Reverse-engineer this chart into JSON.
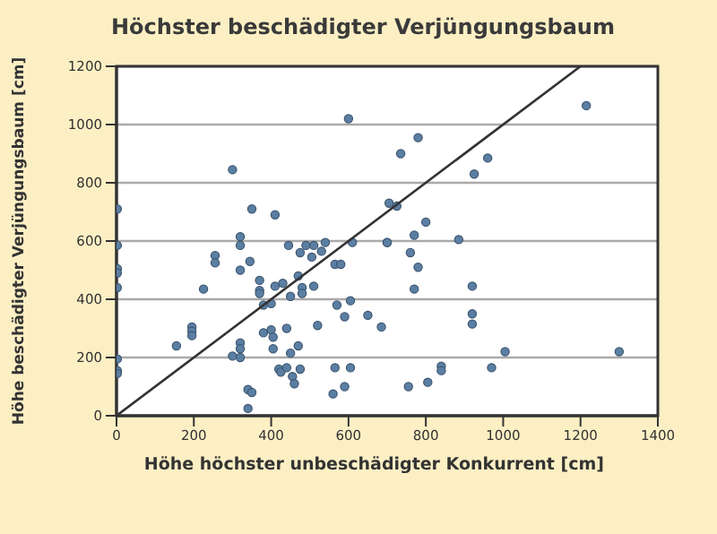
{
  "chart_data": {
    "type": "scatter",
    "title": "Höchster beschädigter Verjüngungsbaum",
    "xlabel": "Höhe höchster unbeschädigter Konkurrent [cm]",
    "ylabel": "Höhe beschädigter Verjüngungsbaum [cm]",
    "xlim": [
      0,
      1400
    ],
    "xticks": [
      0,
      200,
      400,
      600,
      800,
      1000,
      1200,
      1400
    ],
    "ylim": [
      0,
      1200
    ],
    "yticks": [
      0,
      200,
      400,
      600,
      800,
      1000,
      1200
    ],
    "grid": "y",
    "series": [
      {
        "marker": "circle",
        "color": "#5b7fa3",
        "x": [
          300,
          600,
          2,
          320,
          350,
          410,
          320,
          705,
          735,
          780,
          1215,
          960,
          925,
          725,
          800,
          770,
          885,
          700,
          2,
          2,
          2,
          2,
          2,
          2,
          2,
          155,
          195,
          195,
          195,
          225,
          255,
          255,
          300,
          320,
          320,
          320,
          320,
          345,
          340,
          350,
          340,
          370,
          370,
          370,
          380,
          380,
          400,
          405,
          405,
          400,
          410,
          430,
          450,
          445,
          420,
          425,
          440,
          450,
          440,
          455,
          460,
          470,
          475,
          470,
          475,
          490,
          480,
          480,
          505,
          510,
          530,
          540,
          510,
          520,
          565,
          580,
          570,
          590,
          605,
          610,
          650,
          685,
          700,
          565,
          605,
          560,
          590,
          760,
          780,
          770,
          920,
          920,
          920,
          1005,
          1300,
          840,
          840,
          970,
          805,
          755
        ],
        "values": [
          845,
          1020,
          710,
          615,
          710,
          690,
          585,
          730,
          900,
          955,
          1065,
          885,
          830,
          720,
          665,
          620,
          605,
          595,
          585,
          505,
          490,
          440,
          195,
          155,
          145,
          240,
          305,
          290,
          275,
          435,
          550,
          525,
          205,
          500,
          250,
          230,
          200,
          530,
          90,
          80,
          25,
          465,
          430,
          420,
          380,
          285,
          295,
          270,
          230,
          385,
          445,
          455,
          410,
          585,
          160,
          150,
          165,
          215,
          300,
          135,
          110,
          240,
          160,
          480,
          560,
          585,
          440,
          420,
          545,
          585,
          565,
          595,
          445,
          310,
          520,
          520,
          380,
          340,
          395,
          595,
          345,
          305,
          595,
          165,
          165,
          75,
          100,
          560,
          510,
          435,
          445,
          350,
          315,
          220,
          220,
          170,
          155,
          165,
          115,
          100
        ]
      },
      {
        "type": "line",
        "color": "#333333",
        "x": [
          0,
          1200
        ],
        "values": [
          0,
          1200
        ]
      }
    ]
  }
}
